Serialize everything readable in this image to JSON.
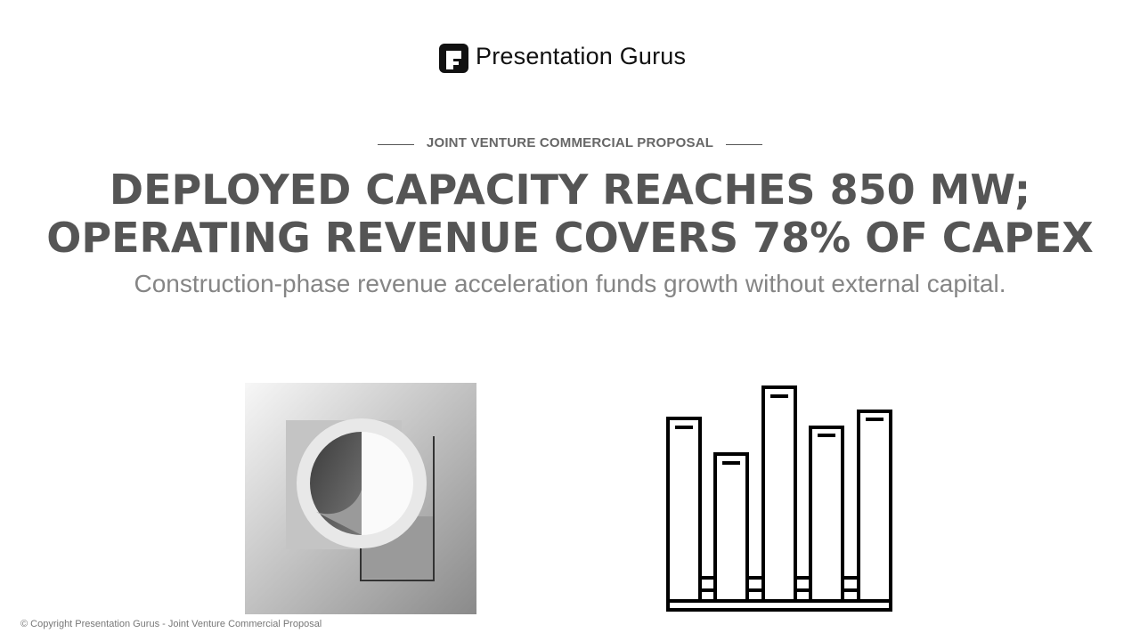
{
  "header": {
    "brand": "Presentation Gurus"
  },
  "slide": {
    "kicker": "JOINT VENTURE COMMERCIAL PROPOSAL",
    "title_lines": [
      "DEPLOYED CAPACITY REACHES 850 MW;",
      "OPERATING REVENUE COVERS 78% OF CAPEX"
    ],
    "subtitle": "Construction-phase revenue acceleration funds growth without external capital."
  },
  "footer": {
    "copyright": "© Copyright Presentation Gurus - Joint Venture Commercial Proposal"
  }
}
